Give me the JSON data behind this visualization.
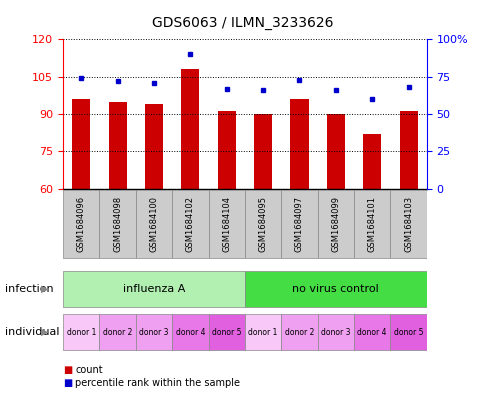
{
  "title": "GDS6063 / ILMN_3233626",
  "samples": [
    "GSM1684096",
    "GSM1684098",
    "GSM1684100",
    "GSM1684102",
    "GSM1684104",
    "GSM1684095",
    "GSM1684097",
    "GSM1684099",
    "GSM1684101",
    "GSM1684103"
  ],
  "counts": [
    96,
    95,
    94,
    108,
    91,
    90,
    96,
    90,
    82,
    91
  ],
  "percentile_ranks": [
    74,
    72,
    71,
    90,
    67,
    66,
    73,
    66,
    60,
    68
  ],
  "ylim": [
    60,
    120
  ],
  "yticks": [
    60,
    75,
    90,
    105,
    120
  ],
  "y2lim": [
    0,
    100
  ],
  "y2ticks": [
    0,
    25,
    50,
    75,
    100
  ],
  "y2ticklabels": [
    "0",
    "25",
    "50",
    "75",
    "100%"
  ],
  "bar_color": "#cc0000",
  "percentile_color": "#0000cc",
  "bar_width": 0.5,
  "infection_groups": [
    {
      "label": "influenza A",
      "start": 0,
      "end": 5,
      "color": "#b2f0b2"
    },
    {
      "label": "no virus control",
      "start": 5,
      "end": 10,
      "color": "#44dd44"
    }
  ],
  "individual_labels": [
    "donor 1",
    "donor 2",
    "donor 3",
    "donor 4",
    "donor 5",
    "donor 1",
    "donor 2",
    "donor 3",
    "donor 4",
    "donor 5"
  ],
  "individual_colors": [
    "#f8c8f8",
    "#f0a0f0",
    "#f0a0f0",
    "#e878e8",
    "#e060e0",
    "#f8c8f8",
    "#f0a0f0",
    "#f0a0f0",
    "#e878e8",
    "#e060e0"
  ],
  "sample_box_color": "#cccccc",
  "legend_count_color": "#cc0000",
  "legend_percentile_color": "#0000cc",
  "background_color": "#ffffff"
}
